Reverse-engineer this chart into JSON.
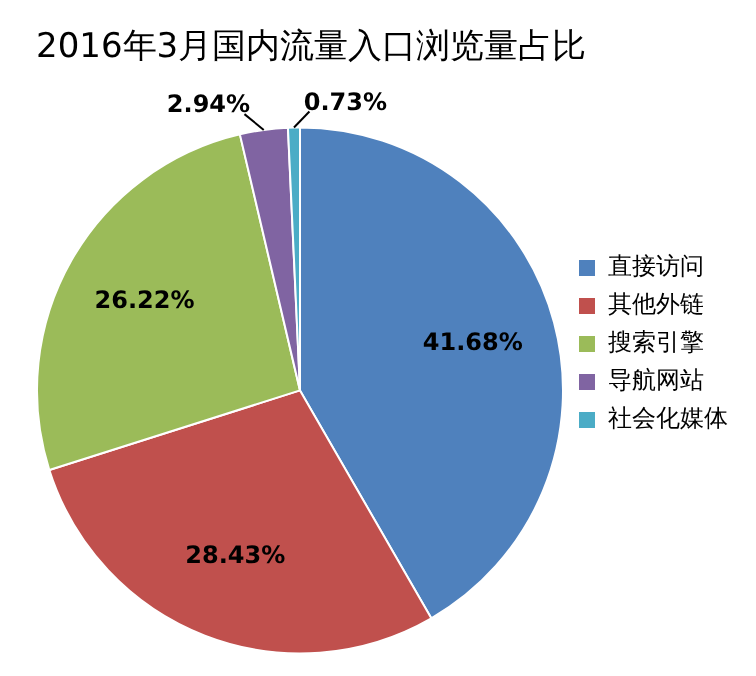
{
  "chart_data": {
    "type": "pie",
    "title": "2016年3月国内流量入口浏览量占比",
    "categories": [
      "直接访问",
      "其他外链",
      "搜索引擎",
      "导航网站",
      "社会化媒体"
    ],
    "values": [
      41.68,
      28.43,
      26.22,
      2.94,
      0.73
    ],
    "colors": [
      "#4f81bd",
      "#c0504d",
      "#9bbb59",
      "#8064a2",
      "#4bacc6"
    ],
    "value_labels": [
      "41.68%",
      "28.43%",
      "26.22%",
      "2.94%",
      "0.73%"
    ],
    "legend": "right"
  }
}
